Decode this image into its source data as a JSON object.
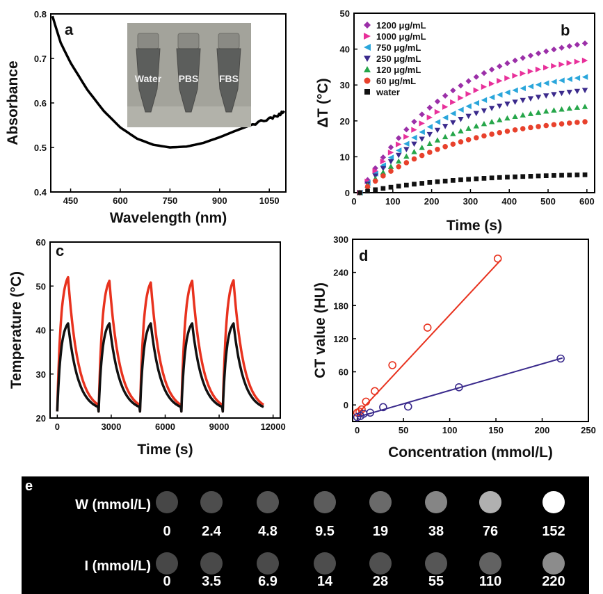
{
  "chart_data": [
    {
      "id": "a",
      "type": "line",
      "panel_label": "a",
      "xlabel": "Wavelength (nm)",
      "ylabel": "Absorbance",
      "xlim": [
        390,
        1100
      ],
      "ylim": [
        0.4,
        0.8
      ],
      "xticks": [
        450,
        600,
        750,
        900,
        1050
      ],
      "yticks": [
        0.4,
        0.5,
        0.6,
        0.7,
        0.8
      ],
      "series": [
        {
          "color": "#000000",
          "x": [
            395,
            420,
            450,
            500,
            550,
            600,
            650,
            700,
            750,
            800,
            850,
            900,
            950,
            1000,
            1050,
            1080,
            1095
          ],
          "y": [
            0.795,
            0.735,
            0.69,
            0.63,
            0.582,
            0.545,
            0.52,
            0.506,
            0.5,
            0.502,
            0.51,
            0.523,
            0.538,
            0.552,
            0.565,
            0.573,
            0.582
          ]
        }
      ],
      "inset": {
        "labels": [
          "Water",
          "PBS",
          "FBS"
        ]
      }
    },
    {
      "id": "b",
      "type": "scatter",
      "panel_label": "b",
      "xlabel": "Time (s)",
      "ylabel": "ΔT (°C)",
      "xlim": [
        0,
        620
      ],
      "ylim": [
        0,
        50
      ],
      "xticks": [
        0,
        100,
        200,
        300,
        400,
        500,
        600
      ],
      "yticks": [
        0,
        10,
        20,
        30,
        40,
        50
      ],
      "legend_position": "top-left",
      "series": [
        {
          "name": "1200 μg/mL",
          "color": "#9b2fa8",
          "marker": "diamond",
          "final": 41.7,
          "tau": 250,
          "t0": 15
        },
        {
          "name": "1000 μg/mL",
          "color": "#e8309a",
          "marker": "triangle-right",
          "final": 36.9,
          "tau": 250,
          "t0": 15
        },
        {
          "name": "750 μg/mL",
          "color": "#2aa6db",
          "marker": "triangle-left",
          "final": 32.3,
          "tau": 250,
          "t0": 15
        },
        {
          "name": "250 μg/mL",
          "color": "#3b2a8c",
          "marker": "triangle-down",
          "final": 28.6,
          "tau": 250,
          "t0": 15
        },
        {
          "name": "120 μg/mL",
          "color": "#26a64a",
          "marker": "triangle-up",
          "final": 24.0,
          "tau": 250,
          "t0": 15
        },
        {
          "name": "60 μg/mL",
          "color": "#e8412c",
          "marker": "circle",
          "final": 19.8,
          "tau": 250,
          "t0": 15
        },
        {
          "name": "water",
          "color": "#111111",
          "marker": "square",
          "final": 5.0,
          "tau": 250,
          "t0": 15
        }
      ]
    },
    {
      "id": "c",
      "type": "line",
      "panel_label": "c",
      "xlabel": "Time (s)",
      "ylabel": "Temperature (°C)",
      "xlim": [
        -400,
        12400
      ],
      "ylim": [
        20,
        60
      ],
      "xticks": [
        0,
        3000,
        6000,
        9000,
        12000
      ],
      "yticks": [
        20,
        30,
        40,
        50,
        60
      ],
      "cycles": {
        "count": 5,
        "period": 2300,
        "heat_duration": 600,
        "start": 0
      },
      "series": [
        {
          "color": "#e8321e",
          "base": 21.5,
          "peaks": [
            52.0,
            51.2,
            50.8,
            51.2,
            51.3
          ]
        },
        {
          "color": "#111111",
          "base": 21.5,
          "peaks": [
            41.5,
            41.5,
            41.5,
            41.5,
            41.5
          ]
        }
      ]
    },
    {
      "id": "d",
      "type": "scatter",
      "panel_label": "d",
      "xlabel": "Concentration (mmol/L)",
      "ylabel": "CT value (HU)",
      "xlim": [
        -5,
        250
      ],
      "ylim": [
        -30,
        300
      ],
      "xticks": [
        0,
        50,
        100,
        150,
        200,
        250
      ],
      "yticks": [
        0,
        60,
        120,
        180,
        240,
        300
      ],
      "series": [
        {
          "color": "#e8321e",
          "marker": "open-circle",
          "x": [
            0,
            2.4,
            4.8,
            9.5,
            19,
            38,
            76,
            152
          ],
          "y": [
            -14,
            -12,
            -8,
            6,
            25,
            72,
            140,
            265
          ],
          "fit_x": [
            0,
            155
          ],
          "fit_y": [
            -17,
            262
          ]
        },
        {
          "color": "#3a2a8c",
          "marker": "open-circle",
          "x": [
            0,
            3.5,
            6.9,
            14,
            28,
            55,
            110,
            220
          ],
          "y": [
            -22,
            -20,
            -16,
            -14,
            -4,
            -3,
            32,
            84
          ],
          "fit_x": [
            0,
            222
          ],
          "fit_y": [
            -22,
            85
          ]
        }
      ]
    }
  ],
  "panel_e": {
    "label": "e",
    "rows": [
      {
        "label": "W (mmol/L)",
        "values": [
          "0",
          "2.4",
          "4.8",
          "9.5",
          "19",
          "38",
          "76",
          "152"
        ],
        "grays": [
          "#474747",
          "#4d4d4d",
          "#545454",
          "#5c5c5c",
          "#6a6a6a",
          "#858585",
          "#b0b0b0",
          "#ffffff"
        ]
      },
      {
        "label": "I (mmol/L)",
        "values": [
          "0",
          "3.5",
          "6.9",
          "14",
          "28",
          "55",
          "110",
          "220"
        ],
        "grays": [
          "#474747",
          "#494949",
          "#4a4a4a",
          "#4d4d4d",
          "#505050",
          "#565656",
          "#626262",
          "#8c8c8c"
        ]
      }
    ]
  }
}
